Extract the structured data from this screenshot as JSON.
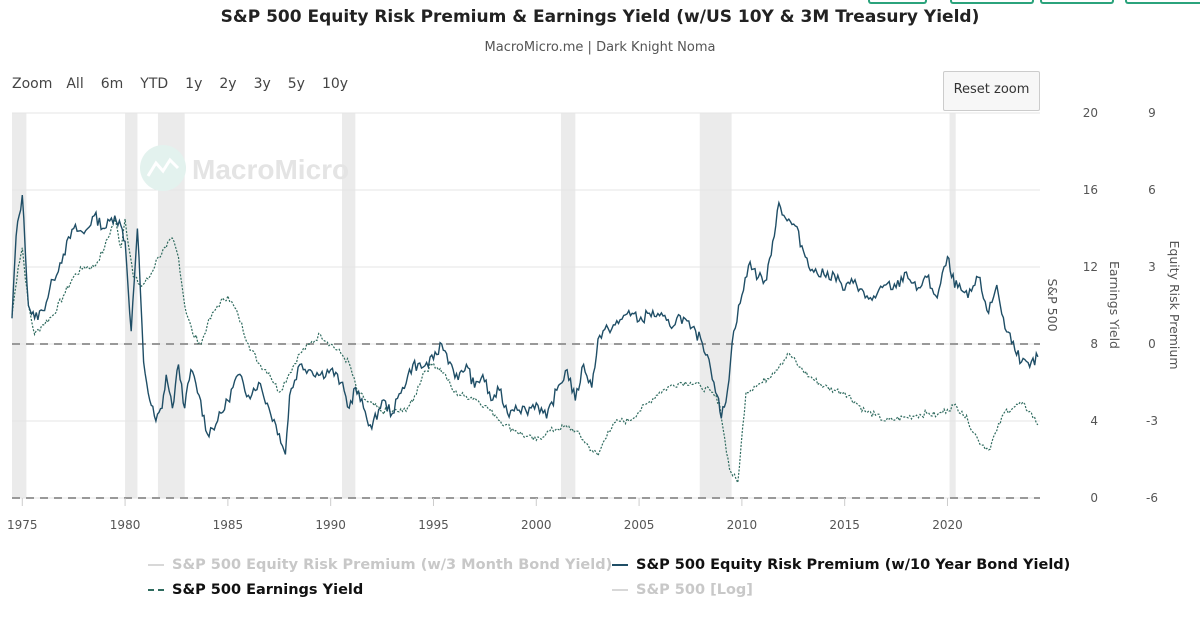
{
  "title": "S&P 500 Equity Risk Premium & Earnings Yield (w/US 10Y & 3M Treasury Yield)",
  "subtitle": "MacroMicro.me | Dark Knight Noma",
  "zoom": {
    "label": "Zoom",
    "buttons": [
      "All",
      "6m",
      "YTD",
      "1y",
      "2y",
      "3y",
      "5y",
      "10y"
    ],
    "reset_label": "Reset zoom"
  },
  "watermark": "MacroMicro",
  "colors": {
    "erp10y": "#1f4e66",
    "earnings": "#2f6b5f",
    "disabled": "#c8c8c8",
    "recession": "#ebebeb",
    "grid": "#e6e6e6",
    "dashed": "#999999"
  },
  "chart_data": {
    "type": "line",
    "title": "S&P 500 Equity Risk Premium & Earnings Yield (w/US 10Y & 3M Treasury Yield)",
    "x_ticks": [
      "1975",
      "1980",
      "1985",
      "1990",
      "1995",
      "2000",
      "2005",
      "2010",
      "2015",
      "2020"
    ],
    "x_range": [
      1974.5,
      2024.5
    ],
    "axes": {
      "sp500": {
        "label": "S&P 500",
        "ticks": []
      },
      "earnings_yield": {
        "label": "Earnings Yield",
        "range": [
          0,
          20
        ],
        "ticks": [
          "0",
          "4",
          "8",
          "12",
          "16",
          "20"
        ]
      },
      "erp": {
        "label": "Equity Risk Premium",
        "range": [
          -6,
          9
        ],
        "ticks": [
          "-6",
          "-3",
          "0",
          "3",
          "6",
          "9"
        ]
      }
    },
    "grid": true,
    "legend_position": "bottom",
    "recessions": [
      [
        1974.5,
        1975.2
      ],
      [
        1980.0,
        1980.6
      ],
      [
        1981.6,
        1982.9
      ],
      [
        1990.55,
        1991.2
      ],
      [
        2001.2,
        2001.9
      ],
      [
        2007.95,
        2009.5
      ],
      [
        2020.1,
        2020.4
      ]
    ],
    "series": [
      {
        "name": "S&P 500 Equity Risk Premium (w/10 Year Bond Yield)",
        "axis": "erp",
        "enabled": true,
        "x": [
          1974.5,
          1974.7,
          1975.0,
          1975.3,
          1975.6,
          1976.0,
          1976.5,
          1977.0,
          1977.5,
          1978.0,
          1978.5,
          1979.0,
          1979.5,
          1979.8,
          1980.0,
          1980.3,
          1980.6,
          1980.9,
          1981.2,
          1981.5,
          1981.8,
          1982.0,
          1982.3,
          1982.6,
          1982.9,
          1983.2,
          1983.6,
          1984.0,
          1984.5,
          1985.0,
          1985.5,
          1986.0,
          1986.5,
          1987.0,
          1987.5,
          1987.8,
          1988.0,
          1988.5,
          1989.0,
          1989.5,
          1990.0,
          1990.5,
          1990.9,
          1991.2,
          1991.6,
          1992.0,
          1992.5,
          1993.0,
          1993.5,
          1994.0,
          1994.5,
          1995.0,
          1995.4,
          1995.8,
          1996.2,
          1996.6,
          1997.0,
          1997.4,
          1997.8,
          1998.2,
          1998.6,
          1999.0,
          1999.5,
          2000.0,
          2000.5,
          2001.0,
          2001.5,
          2001.9,
          2002.3,
          2002.7,
          2003.0,
          2003.5,
          2004.0,
          2004.5,
          2005.0,
          2005.5,
          2006.0,
          2006.5,
          2007.0,
          2007.5,
          2008.0,
          2008.4,
          2008.8,
          2009.0,
          2009.3,
          2009.6,
          2010.0,
          2010.4,
          2010.8,
          2011.2,
          2011.5,
          2011.8,
          2012.2,
          2012.6,
          2013.0,
          2013.5,
          2014.0,
          2014.5,
          2015.0,
          2015.5,
          2016.0,
          2016.5,
          2017.0,
          2017.5,
          2018.0,
          2018.5,
          2019.0,
          2019.5,
          2020.0,
          2020.2,
          2020.5,
          2021.0,
          2021.5,
          2022.0,
          2022.4,
          2022.8,
          2023.2,
          2023.6,
          2024.0,
          2024.4
        ],
        "values": [
          1.0,
          4.2,
          5.8,
          1.5,
          1.0,
          1.3,
          2.5,
          3.5,
          4.5,
          4.3,
          5.0,
          4.5,
          5.0,
          4.6,
          4.0,
          0.5,
          4.5,
          -0.7,
          -2.2,
          -3.0,
          -2.5,
          -1.2,
          -2.5,
          -0.8,
          -2.5,
          -1.0,
          -2.0,
          -3.5,
          -3.0,
          -2.2,
          -1.2,
          -2.0,
          -1.5,
          -2.5,
          -3.5,
          -4.3,
          -2.0,
          -0.8,
          -1.0,
          -1.2,
          -1.0,
          -1.5,
          -2.5,
          -1.7,
          -2.5,
          -3.3,
          -2.2,
          -2.7,
          -1.7,
          -0.8,
          -0.9,
          -0.6,
          0.0,
          -0.7,
          -1.4,
          -0.8,
          -1.7,
          -1.2,
          -2.2,
          -1.8,
          -2.7,
          -2.4,
          -2.6,
          -2.3,
          -2.9,
          -1.8,
          -1.0,
          -2.2,
          -0.8,
          -1.7,
          0.2,
          0.6,
          0.8,
          1.3,
          0.9,
          1.2,
          1.1,
          0.7,
          1.1,
          0.6,
          0.2,
          -0.6,
          -2.0,
          -2.9,
          -1.8,
          0.5,
          1.9,
          3.2,
          2.6,
          2.5,
          4.0,
          5.5,
          4.8,
          4.6,
          3.6,
          2.8,
          2.7,
          2.7,
          2.1,
          2.5,
          1.8,
          1.8,
          2.3,
          2.2,
          2.8,
          2.1,
          2.6,
          1.8,
          3.4,
          2.6,
          2.2,
          1.8,
          2.6,
          1.2,
          2.3,
          0.6,
          0.1,
          -0.7,
          -0.9,
          -0.5
        ]
      },
      {
        "name": "S&P 500 Earnings Yield",
        "axis": "earnings_yield",
        "enabled": true,
        "x": [
          1974.5,
          1974.8,
          1975.0,
          1975.3,
          1975.6,
          1976.0,
          1976.5,
          1977.0,
          1977.5,
          1978.0,
          1978.5,
          1979.0,
          1979.5,
          1979.8,
          1980.0,
          1980.4,
          1980.8,
          1981.2,
          1981.6,
          1982.0,
          1982.3,
          1982.6,
          1982.9,
          1983.3,
          1983.7,
          1984.0,
          1984.5,
          1985.0,
          1985.5,
          1986.0,
          1986.5,
          1987.0,
          1987.5,
          1988.0,
          1988.5,
          1989.0,
          1989.5,
          1990.0,
          1990.5,
          1990.9,
          1991.3,
          1991.8,
          1992.5,
          1993.0,
          1993.5,
          1994.0,
          1994.5,
          1995.0,
          1995.5,
          1996.0,
          1996.5,
          1997.0,
          1997.5,
          1998.0,
          1998.5,
          1999.0,
          1999.5,
          2000.0,
          2000.5,
          2001.0,
          2001.5,
          2001.9,
          2002.3,
          2002.7,
          2003.0,
          2003.5,
          2004.0,
          2004.5,
          2005.0,
          2005.5,
          2006.0,
          2006.5,
          2007.0,
          2007.5,
          2008.0,
          2008.5,
          2008.9,
          2009.1,
          2009.4,
          2009.8,
          2010.2,
          2010.6,
          2011.0,
          2011.5,
          2011.9,
          2012.3,
          2012.8,
          2013.3,
          2014.0,
          2014.5,
          2015.0,
          2015.5,
          2016.0,
          2016.5,
          2017.0,
          2017.5,
          2018.0,
          2018.5,
          2019.0,
          2019.5,
          2020.0,
          2020.3,
          2020.7,
          2021.0,
          2021.5,
          2022.0,
          2022.4,
          2022.8,
          2023.2,
          2023.6,
          2024.0,
          2024.4
        ],
        "values": [
          9.5,
          12.0,
          13.0,
          10.0,
          8.5,
          9.0,
          9.5,
          10.5,
          11.5,
          12.0,
          12.0,
          13.0,
          14.5,
          13.0,
          14.5,
          11.5,
          11.0,
          11.5,
          12.5,
          13.0,
          13.5,
          12.5,
          10.0,
          8.5,
          8.0,
          9.0,
          10.0,
          10.5,
          9.5,
          8.0,
          7.0,
          6.5,
          5.5,
          6.5,
          7.5,
          8.0,
          8.5,
          8.0,
          7.5,
          7.0,
          5.5,
          5.0,
          4.5,
          4.5,
          4.5,
          5.0,
          6.5,
          7.0,
          6.5,
          5.5,
          5.3,
          5.2,
          4.8,
          4.3,
          3.8,
          3.5,
          3.2,
          3.0,
          3.4,
          3.6,
          3.7,
          3.5,
          3.0,
          2.5,
          2.2,
          3.5,
          4.0,
          4.0,
          4.5,
          5.0,
          5.5,
          5.8,
          6.0,
          6.0,
          5.8,
          5.5,
          5.0,
          3.5,
          1.5,
          0.8,
          5.5,
          5.8,
          6.0,
          6.5,
          7.0,
          7.5,
          6.8,
          6.3,
          5.8,
          5.6,
          5.5,
          5.0,
          4.5,
          4.3,
          4.0,
          4.1,
          4.2,
          4.3,
          4.4,
          4.3,
          4.6,
          4.8,
          4.5,
          4.0,
          3.0,
          2.5,
          3.5,
          4.5,
          4.7,
          4.9,
          4.5,
          3.8
        ]
      },
      {
        "name": "S&P 500 Equity Risk Premium (w/3 Month Bond Yield)",
        "enabled": false
      },
      {
        "name": "S&P 500 [Log]",
        "enabled": false
      }
    ]
  }
}
